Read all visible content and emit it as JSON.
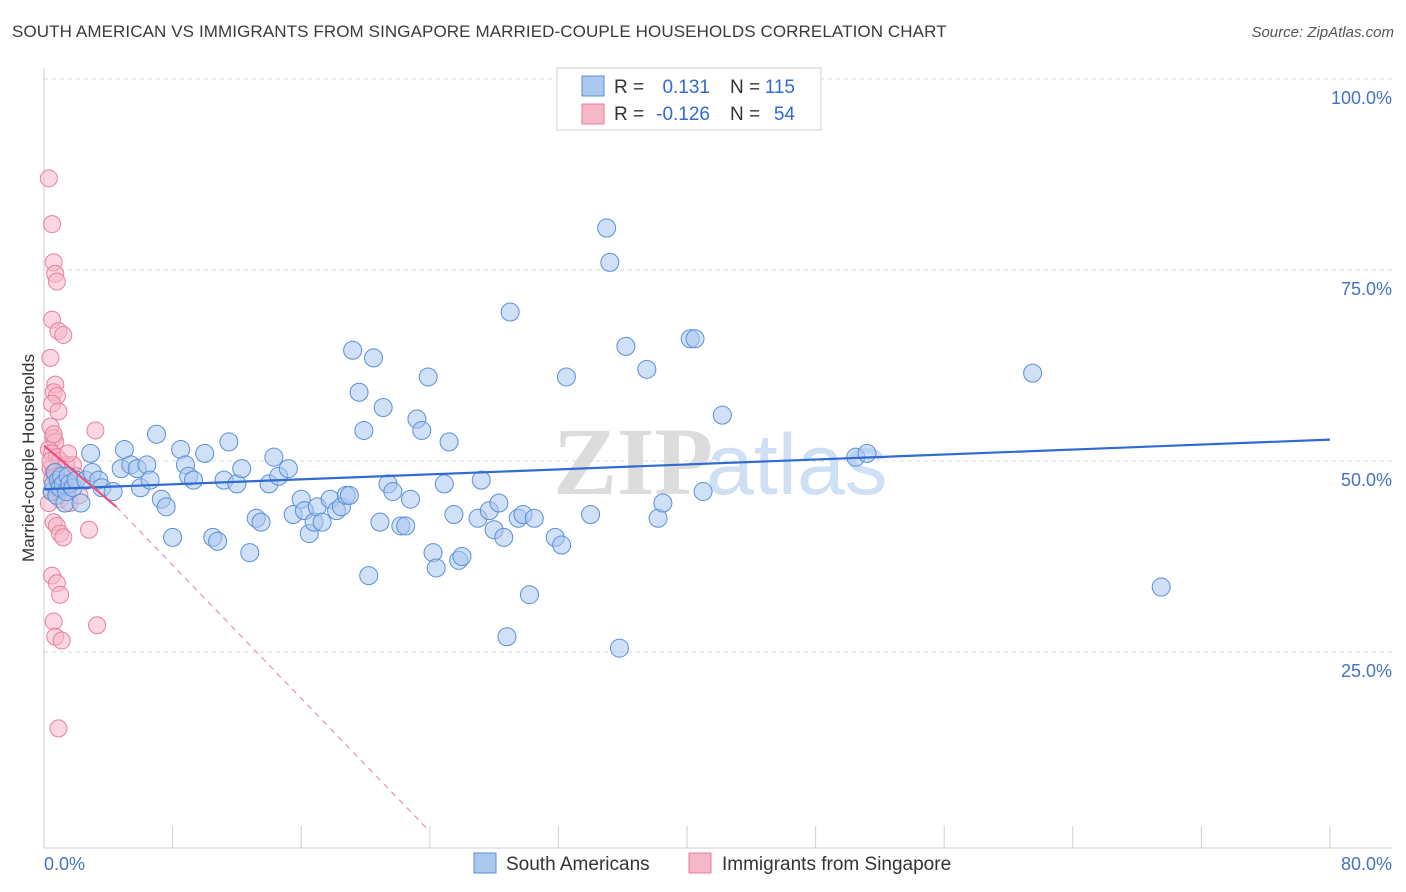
{
  "title": "SOUTH AMERICAN VS IMMIGRANTS FROM SINGAPORE MARRIED-COUPLE HOUSEHOLDS CORRELATION CHART",
  "source": "Source: ZipAtlas.com",
  "watermark": {
    "zip": "ZIP",
    "atlas": "atlas"
  },
  "colors": {
    "blue_fill": "#aac7ee",
    "blue_stroke": "#5b8fd6",
    "blue_line": "#2f6bd1",
    "pink_fill": "#f6b7c9",
    "pink_stroke": "#e77fa0",
    "pink_line": "#e8507e",
    "grid": "#d8d8d8",
    "axis_text": "#4472c4"
  },
  "legend_top": {
    "rows": [
      {
        "r_label": "R =",
        "r_value": "0.131",
        "n_label": "N =",
        "n_value": "115",
        "color": "blue"
      },
      {
        "r_label": "R =",
        "r_value": "-0.126",
        "n_label": "N =",
        "n_value": "54",
        "color": "pink"
      }
    ]
  },
  "legend_bottom": [
    "South Americans",
    "Immigrants from Singapore"
  ],
  "chart_data": {
    "type": "scatter",
    "title": "SOUTH AMERICAN VS IMMIGRANTS FROM SINGAPORE MARRIED-COUPLE HOUSEHOLDS CORRELATION CHART",
    "xlabel": "",
    "ylabel": "Married-couple Households",
    "xlim": [
      0,
      80
    ],
    "ylim": [
      0,
      100
    ],
    "x_tick_labels": [
      "0.0%",
      "80.0%"
    ],
    "y_tick_labels": [
      "100.0%",
      "75.0%",
      "50.0%",
      "25.0%"
    ],
    "y_ticks": [
      100,
      75,
      50,
      25
    ],
    "grid": true,
    "legend_placement": "top-center",
    "series": [
      {
        "name": "South Americans",
        "color": "blue",
        "trend": {
          "x": [
            0,
            80
          ],
          "y": [
            46.3,
            52.8
          ],
          "style": "solid"
        },
        "points": [
          [
            0.5,
            46
          ],
          [
            0.6,
            47
          ],
          [
            0.7,
            48.5
          ],
          [
            0.8,
            45.5
          ],
          [
            0.9,
            47.5
          ],
          [
            1.0,
            46.5
          ],
          [
            1.1,
            48
          ],
          [
            1.2,
            47
          ],
          [
            1.3,
            44.5
          ],
          [
            1.4,
            46
          ],
          [
            1.5,
            48
          ],
          [
            1.6,
            47
          ],
          [
            1.8,
            46.5
          ],
          [
            2.0,
            47.5
          ],
          [
            2.3,
            44.5
          ],
          [
            2.6,
            47.5
          ],
          [
            2.9,
            51
          ],
          [
            3.0,
            48.5
          ],
          [
            3.4,
            47.5
          ],
          [
            3.6,
            46.5
          ],
          [
            4.3,
            46
          ],
          [
            4.8,
            49
          ],
          [
            5.0,
            51.5
          ],
          [
            5.4,
            49.5
          ],
          [
            5.8,
            49
          ],
          [
            6.0,
            46.5
          ],
          [
            6.4,
            49.5
          ],
          [
            6.6,
            47.5
          ],
          [
            7.0,
            53.5
          ],
          [
            7.3,
            45
          ],
          [
            7.6,
            44
          ],
          [
            8.0,
            40
          ],
          [
            8.5,
            51.5
          ],
          [
            8.8,
            49.5
          ],
          [
            9.0,
            48
          ],
          [
            9.3,
            47.5
          ],
          [
            10.0,
            51
          ],
          [
            10.5,
            40
          ],
          [
            10.8,
            39.5
          ],
          [
            11.2,
            47.5
          ],
          [
            11.5,
            52.5
          ],
          [
            12.0,
            47
          ],
          [
            12.3,
            49
          ],
          [
            12.8,
            38
          ],
          [
            13.2,
            42.5
          ],
          [
            13.5,
            42
          ],
          [
            14.0,
            47
          ],
          [
            14.3,
            50.5
          ],
          [
            14.6,
            48
          ],
          [
            15.2,
            49
          ],
          [
            15.5,
            43
          ],
          [
            16.0,
            45
          ],
          [
            16.2,
            43.5
          ],
          [
            16.5,
            40.5
          ],
          [
            16.8,
            42
          ],
          [
            17.0,
            44
          ],
          [
            17.3,
            42
          ],
          [
            17.8,
            45
          ],
          [
            18.2,
            43.5
          ],
          [
            18.5,
            44
          ],
          [
            18.8,
            45.5
          ],
          [
            19.0,
            45.5
          ],
          [
            19.2,
            64.5
          ],
          [
            19.6,
            59
          ],
          [
            19.9,
            54
          ],
          [
            20.2,
            35
          ],
          [
            20.5,
            63.5
          ],
          [
            20.9,
            42
          ],
          [
            21.1,
            57
          ],
          [
            21.4,
            47
          ],
          [
            21.7,
            46
          ],
          [
            22.2,
            41.5
          ],
          [
            22.5,
            41.5
          ],
          [
            22.8,
            45
          ],
          [
            23.2,
            55.5
          ],
          [
            23.5,
            54
          ],
          [
            23.9,
            61
          ],
          [
            24.2,
            38
          ],
          [
            24.4,
            36
          ],
          [
            24.9,
            47
          ],
          [
            25.2,
            52.5
          ],
          [
            25.5,
            43
          ],
          [
            25.8,
            37
          ],
          [
            26.0,
            37.5
          ],
          [
            27.0,
            42.5
          ],
          [
            27.2,
            47.5
          ],
          [
            27.7,
            43.5
          ],
          [
            28.0,
            41
          ],
          [
            28.3,
            44.5
          ],
          [
            28.6,
            40
          ],
          [
            28.8,
            27
          ],
          [
            29.0,
            69.5
          ],
          [
            29.5,
            42.5
          ],
          [
            29.8,
            43
          ],
          [
            30.2,
            32.5
          ],
          [
            30.5,
            42.5
          ],
          [
            31.8,
            40
          ],
          [
            32.2,
            39
          ],
          [
            32.5,
            61
          ],
          [
            34.0,
            43
          ],
          [
            35.0,
            80.5
          ],
          [
            35.2,
            76
          ],
          [
            35.8,
            25.5
          ],
          [
            36.2,
            65
          ],
          [
            37.5,
            62
          ],
          [
            38.2,
            42.5
          ],
          [
            38.5,
            44.5
          ],
          [
            40.2,
            66
          ],
          [
            40.5,
            66
          ],
          [
            41.0,
            46
          ],
          [
            42.2,
            56
          ],
          [
            50.5,
            50.5
          ],
          [
            51.2,
            51
          ],
          [
            61.5,
            61.5
          ],
          [
            69.5,
            33.5
          ]
        ]
      },
      {
        "name": "Immigrants from Singapore",
        "color": "pink",
        "trend": {
          "x": [
            0,
            4.5
          ],
          "y": [
            52,
            44
          ],
          "style": "solid",
          "extended": {
            "x": [
              4.5,
              24
            ],
            "y": [
              44,
              1.5
            ],
            "style": "dashed"
          }
        },
        "points": [
          [
            0.3,
            87
          ],
          [
            0.5,
            81
          ],
          [
            0.6,
            76
          ],
          [
            0.7,
            74.5
          ],
          [
            0.8,
            73.5
          ],
          [
            0.5,
            68.5
          ],
          [
            0.9,
            67
          ],
          [
            1.2,
            66.5
          ],
          [
            0.4,
            63.5
          ],
          [
            0.7,
            60
          ],
          [
            0.6,
            59
          ],
          [
            0.8,
            58.5
          ],
          [
            0.5,
            57.5
          ],
          [
            0.9,
            56.5
          ],
          [
            0.4,
            54.5
          ],
          [
            0.6,
            53
          ],
          [
            0.7,
            52.5
          ],
          [
            0.3,
            51.5
          ],
          [
            0.5,
            51
          ],
          [
            0.8,
            50.5
          ],
          [
            1.0,
            50
          ],
          [
            1.4,
            49.5
          ],
          [
            0.4,
            49
          ],
          [
            0.6,
            48.5
          ],
          [
            0.7,
            48
          ],
          [
            0.9,
            47.5
          ],
          [
            1.1,
            47
          ],
          [
            1.3,
            46.5
          ],
          [
            0.5,
            46
          ],
          [
            0.8,
            45.5
          ],
          [
            1.0,
            45
          ],
          [
            1.6,
            44.5
          ],
          [
            0.6,
            42
          ],
          [
            0.8,
            41.5
          ],
          [
            1.0,
            40.5
          ],
          [
            1.2,
            40
          ],
          [
            2.8,
            41
          ],
          [
            3.2,
            54
          ],
          [
            1.8,
            49.5
          ],
          [
            2.2,
            45.5
          ],
          [
            0.5,
            35
          ],
          [
            0.8,
            34
          ],
          [
            1.0,
            32.5
          ],
          [
            0.6,
            29
          ],
          [
            0.7,
            27
          ],
          [
            1.1,
            26.5
          ],
          [
            3.3,
            28.5
          ],
          [
            0.9,
            15
          ],
          [
            0.4,
            50
          ],
          [
            0.6,
            53.5
          ],
          [
            0.3,
            44.5
          ],
          [
            0.5,
            47.5
          ],
          [
            1.5,
            51
          ],
          [
            2.0,
            48
          ]
        ]
      }
    ]
  }
}
